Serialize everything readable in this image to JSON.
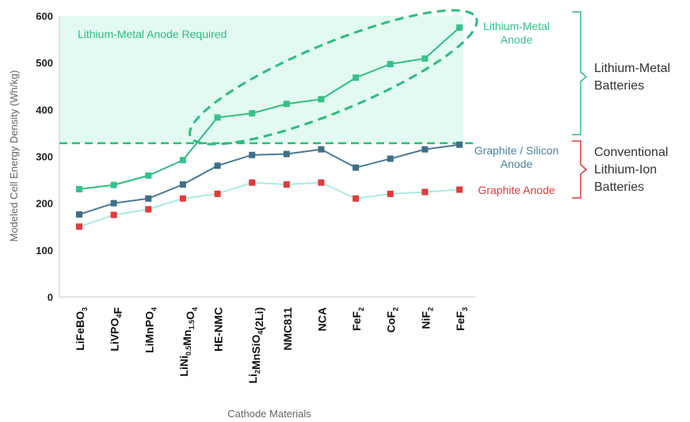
{
  "chart_data": {
    "type": "line",
    "xlabel": "Cathode Materials",
    "ylabel": "Modeled Cell Energy Density (Wh/kg)",
    "ylim": [
      0,
      600
    ],
    "yticks": [
      0,
      100,
      200,
      300,
      400,
      500,
      600
    ],
    "grid": false,
    "categories": [
      [
        {
          "t": "LiFeBO"
        },
        {
          "t": "3",
          "s": 1
        }
      ],
      [
        {
          "t": "LiVPO"
        },
        {
          "t": "4",
          "s": 1
        },
        {
          "t": "F"
        }
      ],
      [
        {
          "t": "LiMnPO"
        },
        {
          "t": "4",
          "s": 1
        }
      ],
      [
        {
          "t": "LiNi"
        },
        {
          "t": "0.5",
          "s": 1
        },
        {
          "t": "Mn"
        },
        {
          "t": "1.5",
          "s": 1
        },
        {
          "t": "O"
        },
        {
          "t": "4",
          "s": 1
        }
      ],
      [
        {
          "t": "HE-NMC"
        }
      ],
      [
        {
          "t": "Li"
        },
        {
          "t": "2",
          "s": 1
        },
        {
          "t": "MnSiO"
        },
        {
          "t": "4",
          "s": 1
        },
        {
          "t": "(2Li)"
        }
      ],
      [
        {
          "t": "NMC811"
        }
      ],
      [
        {
          "t": "NCA"
        }
      ],
      [
        {
          "t": "FeF"
        },
        {
          "t": "2",
          "s": 1
        }
      ],
      [
        {
          "t": "CoF"
        },
        {
          "t": "2",
          "s": 1
        }
      ],
      [
        {
          "t": "NiF"
        },
        {
          "t": "2",
          "s": 1
        }
      ],
      [
        {
          "t": "FeF"
        },
        {
          "t": "3",
          "s": 1
        }
      ]
    ],
    "series": [
      {
        "name": "Lithium-Metal Anode",
        "line_color": "#2ebd7e",
        "marker_color": "#34c28a",
        "values": [
          230,
          239,
          259,
          292,
          383,
          392,
          412,
          422,
          468,
          497,
          509,
          575
        ]
      },
      {
        "name": "Graphite / Silicon Anode",
        "line_color": "#4a7a93",
        "marker_color": "#3e6f88",
        "values": [
          176,
          200,
          210,
          240,
          280,
          303,
          305,
          315,
          276,
          295,
          315,
          325
        ]
      },
      {
        "name": "Graphite Anode",
        "line_color": "#a8ece0",
        "marker_color": "#e23a3a",
        "values": [
          150,
          175,
          187,
          210,
          220,
          244,
          240,
          244,
          210,
          220,
          224,
          229
        ]
      }
    ],
    "threshold": {
      "value": 328,
      "color": "#2ebd7e"
    },
    "region_label": "Lithium-Metal Anode Required",
    "region_color": "#e2faf2",
    "group_labels": [
      {
        "lines": [
          "Lithium-Metal",
          "Batteries"
        ],
        "color": "#2ebd7e"
      },
      {
        "lines": [
          "Conventional",
          "Lithium-Ion",
          "Batteries"
        ],
        "color": "#e23a3a"
      }
    ]
  }
}
